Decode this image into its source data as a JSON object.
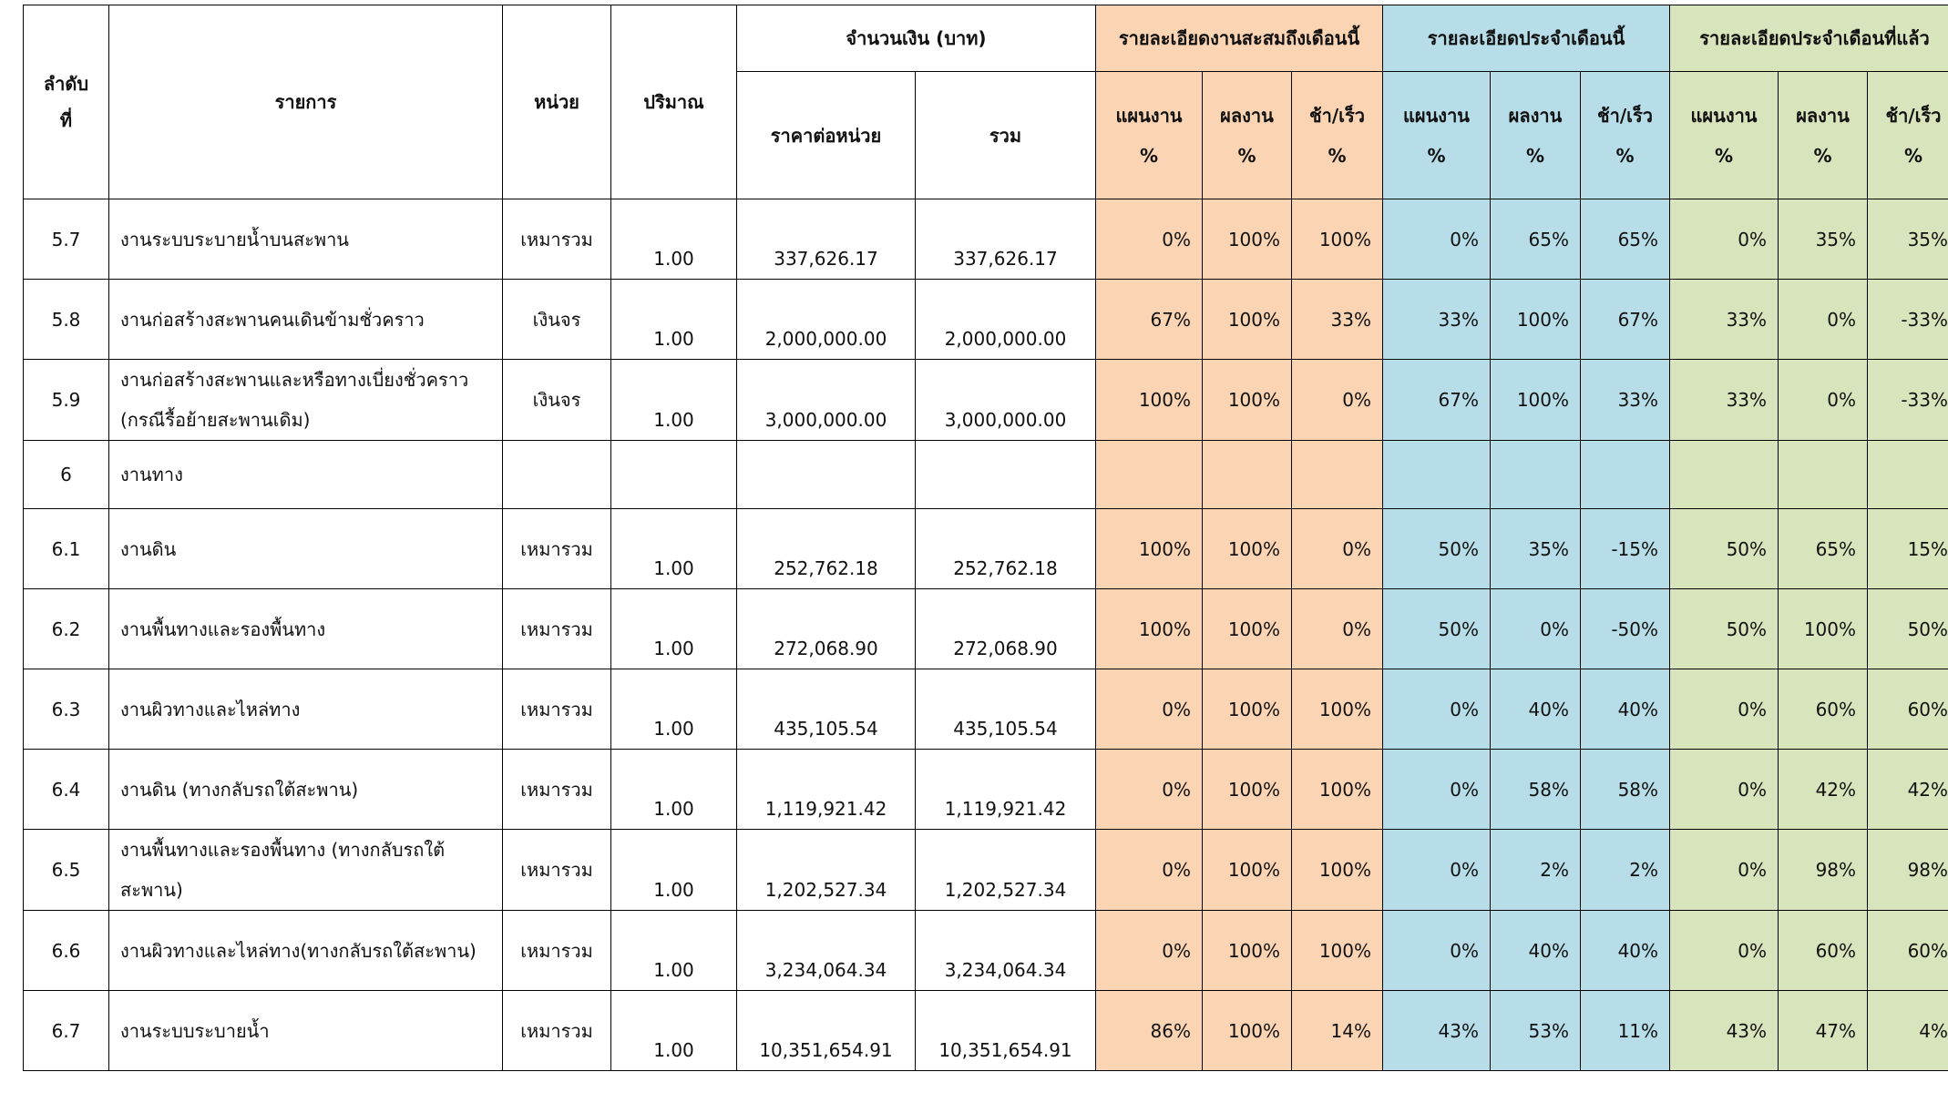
{
  "colors": {
    "cumulative": "#fbd4b4",
    "this_month": "#b7dde8",
    "last_month": "#d8e4bc"
  },
  "header": {
    "seq": "ลำดับ ที่",
    "item": "รายการ",
    "unit": "หน่วย",
    "qty": "ปริมาณ",
    "amount": "จำนวนเงิน (บาท)",
    "unit_price": "ราคาต่อหน่วย",
    "total": "รวม",
    "groups": [
      "รายละเอียดงานสะสมถึงเดือนนี้",
      "รายละเอียดประจำเดือนนี้",
      "รายละเอียดประจำเดือนที่แล้ว"
    ],
    "sub": [
      "แผนงาน %",
      "ผลงาน %",
      "ช้า/เร็ว %"
    ]
  },
  "rows": [
    {
      "seq": "5.7",
      "item": "งานระบบระบายน้ำบนสะพาน",
      "unit": "เหมารวม",
      "qty": "1.00",
      "price": "337,626.17",
      "total": "337,626.17",
      "pct": [
        "0%",
        "100%",
        "100%",
        "0%",
        "65%",
        "65%",
        "0%",
        "35%",
        "35%"
      ]
    },
    {
      "seq": "5.8",
      "item": "งานก่อสร้างสะพานคนเดินข้ามชั่วคราว",
      "unit": "เงินจร",
      "qty": "1.00",
      "price": "2,000,000.00",
      "total": "2,000,000.00",
      "pct": [
        "67%",
        "100%",
        "33%",
        "33%",
        "100%",
        "67%",
        "33%",
        "0%",
        "-33%"
      ]
    },
    {
      "seq": "5.9",
      "item": "งานก่อสร้างสะพานและหรือทางเบี่ยงชั่วคราว (กรณีรื้อย้ายสะพานเดิม)",
      "unit": "เงินจร",
      "qty": "1.00",
      "price": "3,000,000.00",
      "total": "3,000,000.00",
      "pct": [
        "100%",
        "100%",
        "0%",
        "67%",
        "100%",
        "33%",
        "33%",
        "0%",
        "-33%"
      ]
    },
    {
      "seq": "6",
      "item": "งานทาง",
      "unit": "",
      "qty": "",
      "price": "",
      "total": "",
      "pct": [
        "",
        "",
        "",
        "",
        "",
        "",
        "",
        "",
        ""
      ],
      "short": true
    },
    {
      "seq": "6.1",
      "item": "งานดิน",
      "unit": "เหมารวม",
      "qty": "1.00",
      "price": "252,762.18",
      "total": "252,762.18",
      "pct": [
        "100%",
        "100%",
        "0%",
        "50%",
        "35%",
        "-15%",
        "50%",
        "65%",
        "15%"
      ]
    },
    {
      "seq": "6.2",
      "item": "งานพื้นทางและรองพื้นทาง",
      "unit": "เหมารวม",
      "qty": "1.00",
      "price": "272,068.90",
      "total": "272,068.90",
      "pct": [
        "100%",
        "100%",
        "0%",
        "50%",
        "0%",
        "-50%",
        "50%",
        "100%",
        "50%"
      ]
    },
    {
      "seq": "6.3",
      "item": "งานผิวทางและไหล่ทาง",
      "unit": "เหมารวม",
      "qty": "1.00",
      "price": "435,105.54",
      "total": "435,105.54",
      "pct": [
        "0%",
        "100%",
        "100%",
        "0%",
        "40%",
        "40%",
        "0%",
        "60%",
        "60%"
      ]
    },
    {
      "seq": "6.4",
      "item": "งานดิน (ทางกลับรถใต้สะพาน)",
      "unit": "เหมารวม",
      "qty": "1.00",
      "price": "1,119,921.42",
      "total": "1,119,921.42",
      "pct": [
        "0%",
        "100%",
        "100%",
        "0%",
        "58%",
        "58%",
        "0%",
        "42%",
        "42%"
      ]
    },
    {
      "seq": "6.5",
      "item": "งานพื้นทางและรองพื้นทาง (ทางกลับรถใต้สะพาน)",
      "unit": "เหมารวม",
      "qty": "1.00",
      "price": "1,202,527.34",
      "total": "1,202,527.34",
      "pct": [
        "0%",
        "100%",
        "100%",
        "0%",
        "2%",
        "2%",
        "0%",
        "98%",
        "98%"
      ]
    },
    {
      "seq": "6.6",
      "item": "งานผิวทางและไหล่ทาง(ทางกลับรถใต้สะพาน)",
      "unit": "เหมารวม",
      "qty": "1.00",
      "price": "3,234,064.34",
      "total": "3,234,064.34",
      "pct": [
        "0%",
        "100%",
        "100%",
        "0%",
        "40%",
        "40%",
        "0%",
        "60%",
        "60%"
      ]
    },
    {
      "seq": "6.7",
      "item": "งานระบบระบายน้ำ",
      "unit": "เหมารวม",
      "qty": "1.00",
      "price": "10,351,654.91",
      "total": "10,351,654.91",
      "pct": [
        "86%",
        "100%",
        "14%",
        "43%",
        "53%",
        "11%",
        "43%",
        "47%",
        "4%"
      ]
    }
  ]
}
